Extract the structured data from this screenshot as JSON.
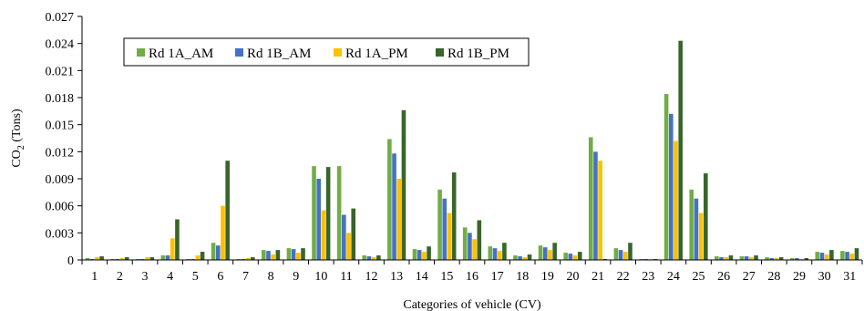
{
  "chart_data": {
    "type": "bar",
    "xlabel": "Categories of vehicle (CV)",
    "ylabel_main": "CO",
    "ylabel_sub": "2",
    "ylabel_unit": " (Tons)",
    "ylim": [
      0,
      0.027
    ],
    "yticks": [
      "0",
      "0.003",
      "0.006",
      "0.009",
      "0.012",
      "0.015",
      "0.018",
      "0.021",
      "0.024",
      "0.027"
    ],
    "categories": [
      "1",
      "2",
      "3",
      "4",
      "5",
      "6",
      "7",
      "8",
      "9",
      "10",
      "11",
      "12",
      "13",
      "14",
      "15",
      "16",
      "17",
      "18",
      "19",
      "20",
      "21",
      "22",
      "23",
      "24",
      "25",
      "26",
      "27",
      "28",
      "29",
      "30",
      "31"
    ],
    "legend_position": "top-left",
    "series": [
      {
        "name": "Rd 1A_AM",
        "color": "#70ad47",
        "values": [
          0.0002,
          0.0001,
          0.0001,
          0.0005,
          0.0001,
          0.0019,
          0.0001,
          0.0011,
          0.0013,
          0.0104,
          0.0104,
          0.0005,
          0.0134,
          0.0012,
          0.0078,
          0.0036,
          0.0015,
          0.0005,
          0.0016,
          0.0008,
          0.0136,
          0.0013,
          0.0001,
          0.0184,
          0.0078,
          0.0004,
          0.0004,
          0.0003,
          0.0002,
          0.0009,
          0.001
        ]
      },
      {
        "name": "Rd 1B_AM",
        "color": "#4472c4",
        "values": [
          0.0001,
          0.0001,
          0.0001,
          0.0005,
          0.0001,
          0.0016,
          0.0001,
          0.001,
          0.0012,
          0.009,
          0.005,
          0.0004,
          0.0118,
          0.0011,
          0.0068,
          0.003,
          0.0013,
          0.0004,
          0.0014,
          0.0007,
          0.012,
          0.0011,
          0.0001,
          0.0162,
          0.0068,
          0.0003,
          0.0004,
          0.0002,
          0.0002,
          0.0008,
          0.0009
        ]
      },
      {
        "name": "Rd 1A_PM",
        "color": "#ffc000",
        "values": [
          0.0003,
          0.0002,
          0.0003,
          0.0024,
          0.0005,
          0.006,
          0.0002,
          0.0006,
          0.0008,
          0.0055,
          0.003,
          0.0003,
          0.009,
          0.0009,
          0.0052,
          0.0023,
          0.001,
          0.0003,
          0.0011,
          0.0005,
          0.011,
          0.0009,
          0.0001,
          0.0132,
          0.0052,
          0.0003,
          0.0003,
          0.0002,
          0.0001,
          0.0006,
          0.0007
        ]
      },
      {
        "name": "Rd 1B_PM",
        "color": "#38662a",
        "values": [
          0.0004,
          0.0003,
          0.0003,
          0.0045,
          0.0009,
          0.011,
          0.0003,
          0.0011,
          0.0013,
          0.0103,
          0.0057,
          0.0005,
          0.0166,
          0.0015,
          0.0097,
          0.0044,
          0.0019,
          0.0006,
          0.0019,
          0.0009,
          0.0001,
          0.0019,
          0.0001,
          0.0243,
          0.0096,
          0.0005,
          0.0005,
          0.0003,
          0.0002,
          0.0011,
          0.0013
        ]
      }
    ]
  }
}
